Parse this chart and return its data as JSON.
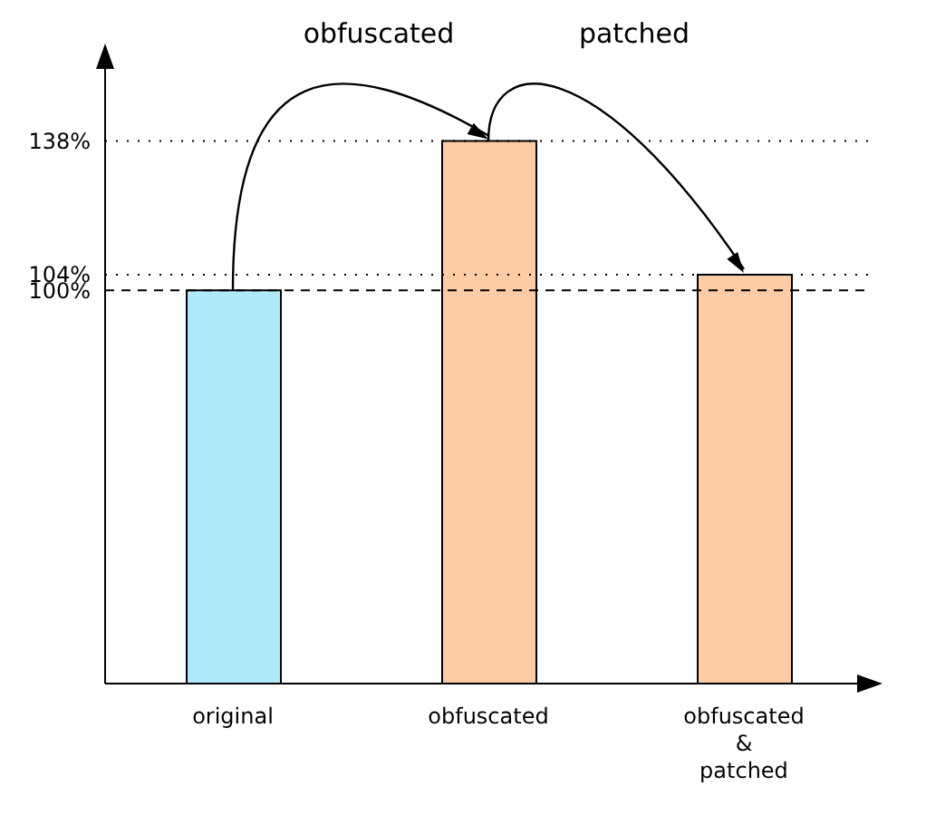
{
  "chart_data": {
    "type": "bar",
    "categories": [
      "original",
      "obfuscated",
      "obfuscated\n&\npatched"
    ],
    "values": [
      100,
      138,
      104
    ],
    "colors": [
      "#aeeaf9",
      "#fdcba4",
      "#fdcba4"
    ],
    "ylim": [
      0,
      160
    ],
    "yticks": [
      {
        "value": 100,
        "label": "100%"
      },
      {
        "value": 104,
        "label": "104%"
      },
      {
        "value": 138,
        "label": "138%"
      }
    ],
    "ref_lines": [
      {
        "axis": "y",
        "value": 100,
        "line_style": "dashed"
      },
      {
        "axis": "y",
        "value": 104,
        "line_style": "dotted"
      },
      {
        "axis": "y",
        "value": 138,
        "line_style": "dotted"
      }
    ],
    "annotations": [
      "obfuscated",
      "patched"
    ]
  }
}
